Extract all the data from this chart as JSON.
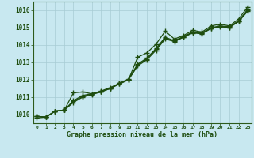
{
  "x": [
    0,
    1,
    2,
    3,
    4,
    5,
    6,
    7,
    8,
    9,
    10,
    11,
    12,
    13,
    14,
    15,
    16,
    17,
    18,
    19,
    20,
    21,
    22,
    23
  ],
  "line1": [
    1009.8,
    1009.85,
    1010.2,
    1010.25,
    1011.25,
    1011.3,
    1011.2,
    1011.3,
    1011.5,
    1011.8,
    1012.0,
    1013.3,
    1013.55,
    1014.05,
    1014.8,
    1014.35,
    1014.55,
    1014.85,
    1014.75,
    1015.1,
    1015.2,
    1015.1,
    1015.5,
    1016.2
  ],
  "line2": [
    1009.9,
    1009.85,
    1010.2,
    1010.25,
    1010.7,
    1011.0,
    1011.15,
    1011.3,
    1011.5,
    1011.75,
    1012.0,
    1012.8,
    1013.15,
    1013.7,
    1014.35,
    1014.2,
    1014.45,
    1014.7,
    1014.65,
    1014.95,
    1015.05,
    1015.0,
    1015.35,
    1015.95
  ],
  "line3": [
    1009.9,
    1009.85,
    1010.2,
    1010.25,
    1010.8,
    1011.1,
    1011.2,
    1011.35,
    1011.55,
    1011.8,
    1012.05,
    1012.9,
    1013.25,
    1013.8,
    1014.45,
    1014.25,
    1014.5,
    1014.75,
    1014.7,
    1015.0,
    1015.1,
    1015.05,
    1015.4,
    1016.05
  ],
  "line4": [
    1009.9,
    1009.85,
    1010.2,
    1010.25,
    1010.75,
    1011.05,
    1011.18,
    1011.32,
    1011.52,
    1011.77,
    1012.02,
    1012.85,
    1013.2,
    1013.75,
    1014.4,
    1014.22,
    1014.47,
    1014.72,
    1014.67,
    1014.97,
    1015.07,
    1015.02,
    1015.37,
    1016.0
  ],
  "ylim_min": 1009.5,
  "ylim_max": 1016.5,
  "xlim_min": 0,
  "xlim_max": 23,
  "yticks": [
    1010,
    1011,
    1012,
    1013,
    1014,
    1015,
    1016
  ],
  "xticks": [
    0,
    1,
    2,
    3,
    4,
    5,
    6,
    7,
    8,
    9,
    10,
    11,
    12,
    13,
    14,
    15,
    16,
    17,
    18,
    19,
    20,
    21,
    22,
    23
  ],
  "xlabel": "Graphe pression niveau de la mer (hPa)",
  "line_color": "#1e4d0f",
  "bg_color": "#c8e8f0",
  "grid_color": "#a8ccd4",
  "border_color": "#2d5a1b",
  "text_color": "#1e4d0f",
  "marker": "+",
  "markersize": 4,
  "linewidth": 0.9
}
